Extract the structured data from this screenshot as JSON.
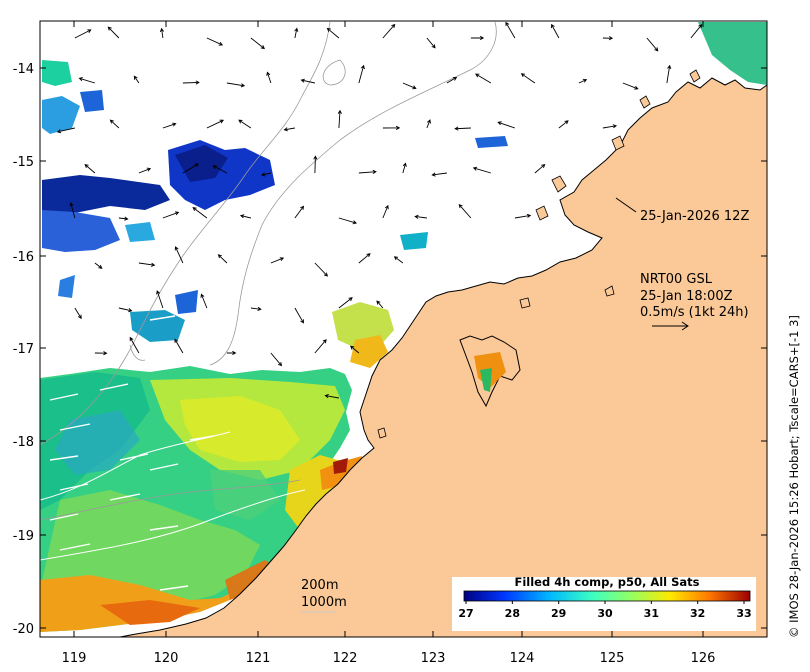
{
  "map": {
    "lon_range": [
      118.6,
      126.7
    ],
    "lat_range": [
      -20.1,
      -13.5
    ],
    "x_ticks": [
      119,
      120,
      121,
      122,
      123,
      124,
      125,
      126
    ],
    "y_ticks": [
      -14,
      -15,
      -16,
      -17,
      -18,
      -19,
      -20
    ],
    "land_color": "#fbc998",
    "ocean_color": "#ffffff"
  },
  "annotations": {
    "swath_time": "25-Jan-2026 12Z",
    "model_name": "NRT00 GSL",
    "model_time": "25-Jan 18:00Z",
    "scale_label": "0.5m/s (1kt 24h)",
    "depth_contour_1": "200m",
    "depth_contour_2": "1000m"
  },
  "colorbar": {
    "title": "Filled 4h comp, p50, All Sats",
    "ticks": [
      27,
      28,
      29,
      30,
      31,
      32,
      33
    ],
    "min": 27,
    "max": 33,
    "colors": [
      "#00007f",
      "#0036ff",
      "#00b8ff",
      "#3dffc1",
      "#91ff66",
      "#ffea00",
      "#ff7600",
      "#9b0000"
    ]
  },
  "credit": "© IMOS 28-Jan-2026 15:26 Hobart; Tscale=CARS+[-1 3]"
}
